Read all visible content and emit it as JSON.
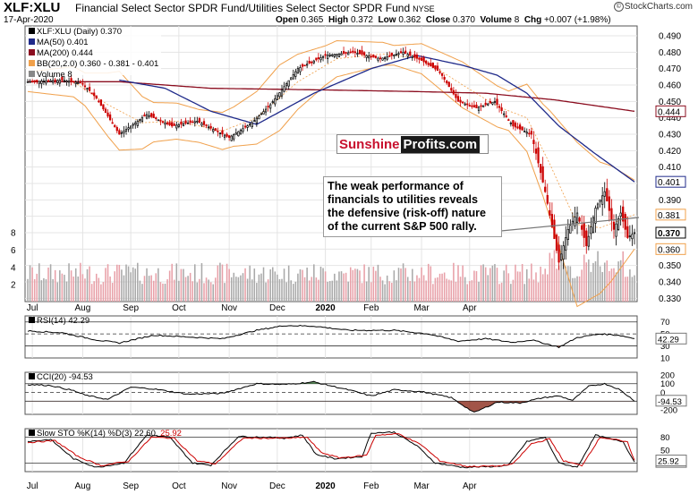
{
  "header": {
    "symbol": "XLF:XLU",
    "description": "Financial Select Sector SPDR Fund/Utilities Select Sector SPDR Fund",
    "exchange": "NYSE",
    "date": "17-Apr-2020",
    "quote": {
      "open_label": "Open",
      "open": "0.365",
      "high_label": "High",
      "high": "0.372",
      "low_label": "Low",
      "low": "0.362",
      "close_label": "Close",
      "close": "0.370",
      "volume_label": "Volume",
      "volume": "8",
      "chg_label": "Chg",
      "chg": "+0.007 (+1.98%)"
    },
    "brand": "StockCharts.com",
    "brand_mark": "©"
  },
  "legend": {
    "price": "XLF:XLU (Daily) 0.370",
    "ma50": "MA(50) 0.401",
    "ma200": "MA(200) 0.444",
    "bb": "BB(20,2.0) 0.360 - 0.381 - 0.401",
    "volume": "Volume 8"
  },
  "logo": {
    "part1": "Sunshine",
    "part2": "Profits.com"
  },
  "annotation": "The weak performance of financials to utilities reveals the defensive (risk-off) nature of the current S&P 500 rally.",
  "colors": {
    "up": "#000000",
    "down": "#cc0000",
    "ma50": "#1f2a8a",
    "ma200": "#8b0d1f",
    "bb": "#f0a04b",
    "vol_up": "#a9a9a9",
    "vol_down": "#e8a0a8",
    "osc_pos": "#3c7a3c",
    "osc_neg": "#8b2a1a"
  },
  "chart_data": [
    {
      "type": "candlestick",
      "title": "XLF:XLU (Daily) 0.370",
      "x_labels": [
        "Jul",
        "Aug",
        "Sep",
        "Oct",
        "Nov",
        "Dec",
        "2020",
        "Feb",
        "Mar",
        "Apr"
      ],
      "ylim": [
        0.328,
        0.496
      ],
      "y_ticks": [
        "0.490",
        "0.480",
        "0.470",
        "0.460",
        "0.450",
        "0.440",
        "0.430",
        "0.420",
        "0.410",
        "0.400",
        "0.390",
        "0.380",
        "0.370",
        "0.360",
        "0.350",
        "0.340",
        "0.330"
      ],
      "last_value_tags": [
        {
          "label": "0.444",
          "value": 0.444,
          "series": "MA(200)"
        },
        {
          "label": "0.401",
          "value": 0.401,
          "series": "MA(50)"
        },
        {
          "label": "0.381",
          "value": 0.381,
          "series": "BB mid"
        },
        {
          "label": "0.370",
          "value": 0.37,
          "series": "Close"
        },
        {
          "label": "0.360",
          "value": 0.36,
          "series": "BB lower"
        }
      ],
      "close_anchors": [
        [
          0,
          0.462
        ],
        [
          15,
          0.463
        ],
        [
          24,
          0.461
        ],
        [
          30,
          0.452
        ],
        [
          40,
          0.43
        ],
        [
          52,
          0.442
        ],
        [
          63,
          0.435
        ],
        [
          74,
          0.438
        ],
        [
          88,
          0.428
        ],
        [
          98,
          0.437
        ],
        [
          106,
          0.448
        ],
        [
          118,
          0.47
        ],
        [
          130,
          0.478
        ],
        [
          142,
          0.48
        ],
        [
          154,
          0.476
        ],
        [
          164,
          0.48
        ],
        [
          172,
          0.475
        ],
        [
          180,
          0.468
        ],
        [
          188,
          0.45
        ],
        [
          196,
          0.446
        ],
        [
          204,
          0.45
        ],
        [
          212,
          0.435
        ],
        [
          220,
          0.43
        ],
        [
          226,
          0.395
        ],
        [
          232,
          0.352
        ],
        [
          236,
          0.372
        ],
        [
          240,
          0.382
        ],
        [
          244,
          0.362
        ],
        [
          248,
          0.385
        ],
        [
          252,
          0.395
        ],
        [
          256,
          0.372
        ],
        [
          259,
          0.382
        ],
        [
          262,
          0.367
        ],
        [
          265,
          0.37
        ]
      ],
      "ma50_anchors": [
        [
          40,
          0.463
        ],
        [
          60,
          0.458
        ],
        [
          80,
          0.444
        ],
        [
          100,
          0.436
        ],
        [
          125,
          0.455
        ],
        [
          150,
          0.47
        ],
        [
          170,
          0.478
        ],
        [
          190,
          0.472
        ],
        [
          205,
          0.466
        ],
        [
          218,
          0.455
        ],
        [
          232,
          0.435
        ],
        [
          248,
          0.418
        ],
        [
          265,
          0.401
        ]
      ],
      "ma200_anchors": [
        [
          0,
          0.462
        ],
        [
          40,
          0.462
        ],
        [
          80,
          0.458
        ],
        [
          130,
          0.457
        ],
        [
          170,
          0.456
        ],
        [
          200,
          0.455
        ],
        [
          230,
          0.451
        ],
        [
          265,
          0.444
        ]
      ],
      "bb_mid_anchors": [
        [
          0,
          0.462
        ],
        [
          20,
          0.462
        ],
        [
          35,
          0.448
        ],
        [
          50,
          0.437
        ],
        [
          65,
          0.438
        ],
        [
          85,
          0.432
        ],
        [
          100,
          0.44
        ],
        [
          118,
          0.462
        ],
        [
          135,
          0.476
        ],
        [
          155,
          0.479
        ],
        [
          172,
          0.476
        ],
        [
          190,
          0.46
        ],
        [
          205,
          0.447
        ],
        [
          218,
          0.44
        ],
        [
          228,
          0.412
        ],
        [
          240,
          0.375
        ],
        [
          250,
          0.373
        ],
        [
          265,
          0.381
        ]
      ],
      "bb_width_anchors": [
        [
          0,
          0.006
        ],
        [
          25,
          0.01
        ],
        [
          40,
          0.024
        ],
        [
          55,
          0.012
        ],
        [
          75,
          0.01
        ],
        [
          90,
          0.012
        ],
        [
          110,
          0.02
        ],
        [
          130,
          0.012
        ],
        [
          160,
          0.006
        ],
        [
          190,
          0.014
        ],
        [
          210,
          0.012
        ],
        [
          225,
          0.028
        ],
        [
          240,
          0.05
        ],
        [
          255,
          0.035
        ],
        [
          265,
          0.021
        ]
      ],
      "volume_ylim": [
        0,
        9
      ],
      "volume_ticks": [
        "8",
        "6",
        "4",
        "2"
      ]
    },
    {
      "type": "line",
      "title": "RSI(14) 42.29",
      "ylim": [
        10,
        80
      ],
      "y_ticks": [
        "70",
        "50",
        "30",
        "10"
      ],
      "reference_lines": [
        70,
        30
      ],
      "last_value": "42.29",
      "anchors": [
        [
          0,
          55
        ],
        [
          15,
          52
        ],
        [
          30,
          40
        ],
        [
          40,
          35
        ],
        [
          55,
          48
        ],
        [
          70,
          45
        ],
        [
          85,
          42
        ],
        [
          100,
          56
        ],
        [
          112,
          64
        ],
        [
          125,
          63
        ],
        [
          140,
          56
        ],
        [
          160,
          56
        ],
        [
          175,
          50
        ],
        [
          188,
          38
        ],
        [
          200,
          42
        ],
        [
          212,
          36
        ],
        [
          220,
          40
        ],
        [
          232,
          28
        ],
        [
          240,
          44
        ],
        [
          250,
          50
        ],
        [
          258,
          48
        ],
        [
          265,
          42.29
        ]
      ]
    },
    {
      "type": "line",
      "title": "CCI(20) -94.53",
      "ylim": [
        -250,
        230
      ],
      "y_ticks": [
        "200",
        "100",
        "0",
        "-100",
        "-200"
      ],
      "reference_lines": [
        100,
        -100
      ],
      "last_value": "-94.53",
      "anchors": [
        [
          0,
          90
        ],
        [
          10,
          80
        ],
        [
          20,
          20
        ],
        [
          25,
          -30
        ],
        [
          35,
          -80
        ],
        [
          45,
          60
        ],
        [
          55,
          40
        ],
        [
          70,
          -20
        ],
        [
          85,
          -10
        ],
        [
          100,
          100
        ],
        [
          112,
          90
        ],
        [
          125,
          120
        ],
        [
          140,
          30
        ],
        [
          150,
          -40
        ],
        [
          160,
          30
        ],
        [
          172,
          10
        ],
        [
          185,
          -60
        ],
        [
          195,
          -230
        ],
        [
          205,
          -110
        ],
        [
          215,
          -120
        ],
        [
          225,
          -60
        ],
        [
          232,
          -40
        ],
        [
          238,
          -90
        ],
        [
          245,
          70
        ],
        [
          252,
          100
        ],
        [
          258,
          40
        ],
        [
          265,
          -94.53
        ]
      ]
    },
    {
      "type": "line",
      "title": "Slow STO %K(14) %D(3) 22.60, 25.92",
      "ylim": [
        0,
        100
      ],
      "y_ticks": [
        "80",
        "50",
        "20"
      ],
      "reference_lines": [
        80,
        20
      ],
      "series": [
        {
          "name": "%K(14)",
          "last_value": "22.60",
          "anchors": [
            [
              0,
              70
            ],
            [
              10,
              75
            ],
            [
              20,
              30
            ],
            [
              30,
              10
            ],
            [
              42,
              20
            ],
            [
              52,
              85
            ],
            [
              62,
              80
            ],
            [
              72,
              20
            ],
            [
              80,
              15
            ],
            [
              92,
              82
            ],
            [
              104,
              80
            ],
            [
              112,
              78
            ],
            [
              120,
              85
            ],
            [
              126,
              40
            ],
            [
              134,
              30
            ],
            [
              146,
              35
            ],
            [
              150,
              90
            ],
            [
              160,
              92
            ],
            [
              170,
              60
            ],
            [
              178,
              20
            ],
            [
              190,
              10
            ],
            [
              204,
              12
            ],
            [
              210,
              15
            ],
            [
              218,
              70
            ],
            [
              226,
              80
            ],
            [
              232,
              20
            ],
            [
              240,
              10
            ],
            [
              248,
              85
            ],
            [
              255,
              75
            ],
            [
              260,
              70
            ],
            [
              265,
              22.6
            ]
          ]
        },
        {
          "name": "%D(3)",
          "last_value": "25.92",
          "anchors": [
            [
              0,
              68
            ],
            [
              12,
              72
            ],
            [
              22,
              35
            ],
            [
              32,
              14
            ],
            [
              44,
              24
            ],
            [
              54,
              80
            ],
            [
              64,
              78
            ],
            [
              74,
              25
            ],
            [
              82,
              18
            ],
            [
              94,
              78
            ],
            [
              106,
              78
            ],
            [
              114,
              78
            ],
            [
              122,
              80
            ],
            [
              128,
              45
            ],
            [
              136,
              32
            ],
            [
              148,
              38
            ],
            [
              152,
              85
            ],
            [
              162,
              88
            ],
            [
              172,
              62
            ],
            [
              180,
              25
            ],
            [
              192,
              12
            ],
            [
              206,
              13
            ],
            [
              212,
              18
            ],
            [
              220,
              65
            ],
            [
              228,
              76
            ],
            [
              234,
              25
            ],
            [
              242,
              14
            ],
            [
              250,
              80
            ],
            [
              257,
              74
            ],
            [
              262,
              68
            ],
            [
              265,
              25.92
            ]
          ]
        }
      ]
    }
  ]
}
